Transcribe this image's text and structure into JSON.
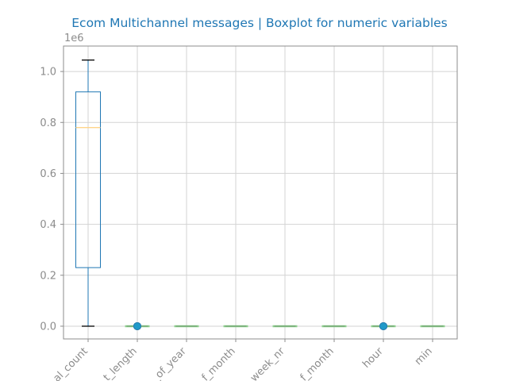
{
  "chart_data": {
    "type": "boxplot",
    "title": "Ecom Multichannel messages | Boxplot for numeric variables",
    "y_offset_label": "1e6",
    "ylim": [
      -0.05,
      1.1
    ],
    "y_ticks": [
      0.0,
      0.2,
      0.4,
      0.6,
      0.8,
      1.0
    ],
    "y_tick_labels": [
      "0.0",
      "0.2",
      "0.4",
      "0.6",
      "0.8",
      "1.0"
    ],
    "grid": true,
    "categories": [
      "_al_count",
      "_t_length",
      "_of_year",
      "_f_month",
      "_week_nr",
      "_f_month",
      "hour",
      "min"
    ],
    "boxes": [
      {
        "whislo": 0.0,
        "q1": 0.23,
        "med": 0.78,
        "q3": 0.92,
        "whishi": 1.045,
        "fliers": []
      },
      {
        "whislo": 0.0,
        "q1": 0.0,
        "med": 0.0,
        "q3": 0.0,
        "whishi": 0.0,
        "fliers": [
          0.0,
          0.0,
          0.0
        ]
      },
      {
        "whislo": 0.0,
        "q1": 0.0,
        "med": 0.0,
        "q3": 0.0,
        "whishi": 0.0,
        "fliers": []
      },
      {
        "whislo": 0.0,
        "q1": 0.0,
        "med": 0.0,
        "q3": 0.0,
        "whishi": 0.0,
        "fliers": []
      },
      {
        "whislo": 0.0,
        "q1": 0.0,
        "med": 0.0,
        "q3": 0.0,
        "whishi": 0.0,
        "fliers": []
      },
      {
        "whislo": 0.0,
        "q1": 0.0,
        "med": 0.0,
        "q3": 0.0,
        "whishi": 0.0,
        "fliers": []
      },
      {
        "whislo": 0.0,
        "q1": 0.0,
        "med": 0.0,
        "q3": 0.0,
        "whishi": 0.0,
        "fliers": [
          0.0,
          0.0,
          0.0
        ]
      },
      {
        "whislo": 0.0,
        "q1": 0.0,
        "med": 0.0,
        "q3": 0.0,
        "whishi": 0.0,
        "fliers": []
      }
    ],
    "colors": {
      "title": "#1f77b4",
      "box": "#1f77b4",
      "median": "#ffd58a",
      "whisker_cap": "#000000",
      "flier": "#1f9ac9",
      "grid": "#d3d3d3",
      "axis": "#8c8c8c",
      "tick_text": "#8c8c8c",
      "collapsed_box": "#8fd18f"
    }
  }
}
